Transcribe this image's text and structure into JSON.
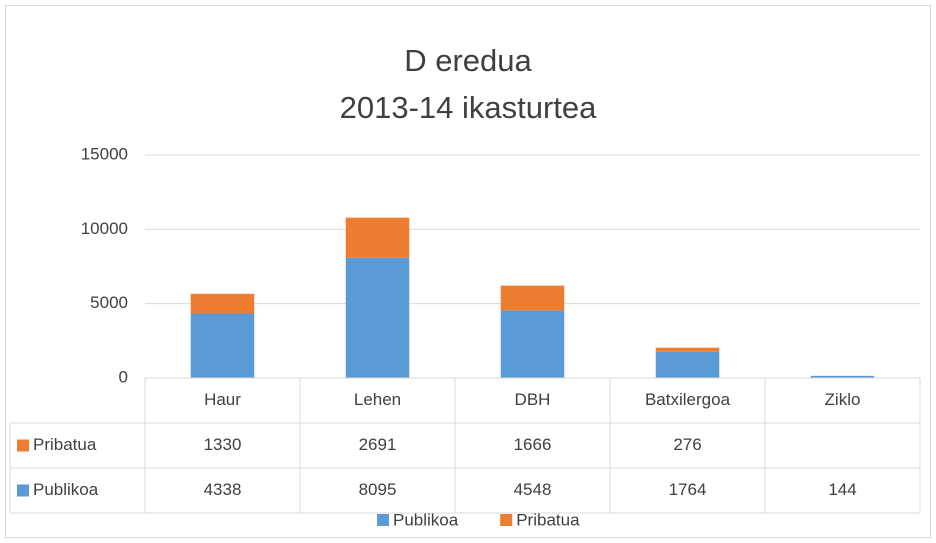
{
  "chart_data": {
    "type": "stacked_bar",
    "title": "D eredua",
    "subtitle": "2013-14 ikasturtea",
    "categories": [
      "Haur",
      "Lehen",
      "DBH",
      "Batxilergoa",
      "Ziklo"
    ],
    "series": [
      {
        "name": "Publikoa",
        "color": "#5b9bd5",
        "values": [
          4338,
          8095,
          4548,
          1764,
          144
        ]
      },
      {
        "name": "Pribatua",
        "color": "#ed7d31",
        "values": [
          1330,
          2691,
          1666,
          276,
          null
        ]
      }
    ],
    "ylim": [
      0,
      15000
    ],
    "yticks": [
      0,
      5000,
      10000,
      15000
    ],
    "grid": true,
    "legend": "bottom",
    "data_table": true
  }
}
